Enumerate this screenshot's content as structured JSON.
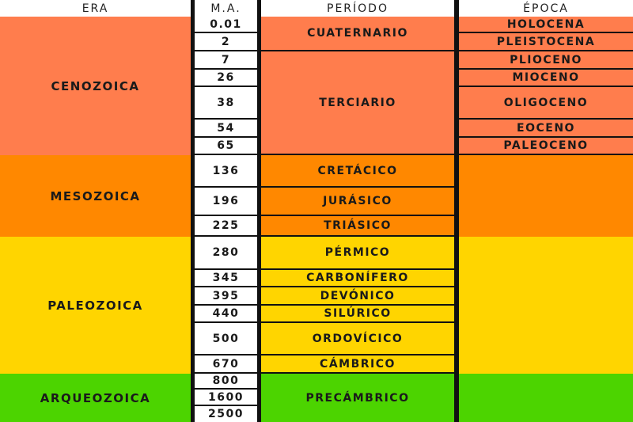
{
  "colors": {
    "cenozoica": "#ff7d4d",
    "mesozoica": "#ff8800",
    "paleozoica": "#ffd500",
    "arqueozoica": "#4cd400",
    "header": "#ffffff",
    "lines": "#111111"
  },
  "headers": {
    "era": "ERA",
    "ma": "M.A.",
    "periodo": "PERÍODO",
    "epoca": "ÉPOCA"
  },
  "eras": [
    {
      "label": "CENOZOICA",
      "color_key": "cenozoica"
    },
    {
      "label": "MESOZOICA",
      "color_key": "mesozoica"
    },
    {
      "label": "PALEOZOICA",
      "color_key": "paleozoica"
    },
    {
      "label": "ARQUEOZOICA",
      "color_key": "arqueozoica"
    }
  ],
  "ma_values": [
    "0.01",
    "2",
    "7",
    "26",
    "38",
    "54",
    "65",
    "136",
    "196",
    "225",
    "280",
    "345",
    "395",
    "440",
    "500",
    "670",
    "800",
    "1600",
    "2500"
  ],
  "periods": [
    {
      "label": "CUATERNARIO",
      "era": "cenozoica"
    },
    {
      "label": "TERCIARIO",
      "era": "cenozoica"
    },
    {
      "label": "CRETÁCICO",
      "era": "mesozoica"
    },
    {
      "label": "JURÁSICO",
      "era": "mesozoica"
    },
    {
      "label": "TRIÁSICO",
      "era": "mesozoica"
    },
    {
      "label": "PÉRMICO",
      "era": "paleozoica"
    },
    {
      "label": "CARBONÍFERO",
      "era": "paleozoica"
    },
    {
      "label": "DEVÓNICO",
      "era": "paleozoica"
    },
    {
      "label": "SILÚRICO",
      "era": "paleozoica"
    },
    {
      "label": "ORDOVÍCICO",
      "era": "paleozoica"
    },
    {
      "label": "CÁMBRICO",
      "era": "paleozoica"
    },
    {
      "label": "PRECÁMBRICO",
      "era": "arqueozoica"
    }
  ],
  "epochs": [
    {
      "label": "HOLOCENA",
      "era": "cenozoica"
    },
    {
      "label": "PLEISTOCENA",
      "era": "cenozoica"
    },
    {
      "label": "PLIOCENO",
      "era": "cenozoica"
    },
    {
      "label": "MIOCENO",
      "era": "cenozoica"
    },
    {
      "label": "OLIGOCENO",
      "era": "cenozoica"
    },
    {
      "label": "EOCENO",
      "era": "cenozoica"
    },
    {
      "label": "PALEOCENO",
      "era": "cenozoica"
    },
    {
      "label": "",
      "era": "mesozoica"
    },
    {
      "label": "",
      "era": "paleozoica"
    },
    {
      "label": "",
      "era": "arqueozoica"
    }
  ]
}
